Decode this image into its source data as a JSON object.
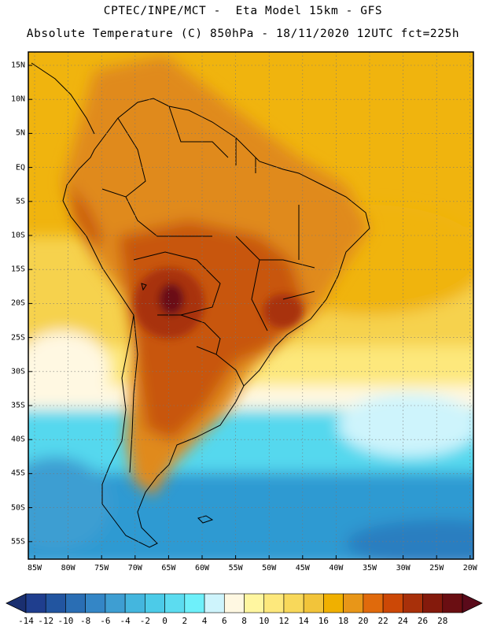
{
  "header": {
    "line1": "CPTEC/INPE/MCT -  Eta Model 15km - GFS",
    "line2": "Absolute Temperature (C) 850hPa - 18/11/2020 12UTC fct=225h"
  },
  "map": {
    "lat_labels": [
      "15N",
      "10N",
      "5N",
      "EQ",
      "5S",
      "10S",
      "15S",
      "20S",
      "25S",
      "30S",
      "35S",
      "40S",
      "45S",
      "50S",
      "55S"
    ],
    "lon_labels": [
      "85W",
      "80W",
      "75W",
      "70W",
      "65W",
      "60W",
      "55W",
      "50W",
      "45W",
      "40W",
      "35W",
      "30W",
      "25W",
      "20W"
    ],
    "field_colors": {
      "ocean_tropical": "#f0b40e",
      "land_warm": "#e08a1e",
      "hot_core": "#8a1c10",
      "subtropical": "#f6d24e",
      "cool": "#54d8ee",
      "cold": "#2e9ad2"
    }
  },
  "colorbar": {
    "labels": [
      "-14",
      "-12",
      "-10",
      "-8",
      "-6",
      "-4",
      "-2",
      "0",
      "2",
      "4",
      "6",
      "8",
      "10",
      "12",
      "14",
      "16",
      "18",
      "20",
      "22",
      "24",
      "26",
      "28"
    ],
    "colors": [
      "#1f3e8e",
      "#2255a0",
      "#2a6eb4",
      "#3486c6",
      "#3e9ed2",
      "#44b6de",
      "#4ccbe8",
      "#5cdcf0",
      "#6ef0fa",
      "#cef4fc",
      "#fff8e2",
      "#fff6a0",
      "#fde87c",
      "#f8d85a",
      "#f2c43a",
      "#f0b000",
      "#e89618",
      "#e06a0c",
      "#cc4806",
      "#a8300a",
      "#841a0c",
      "#6a0e12"
    ],
    "extend_low_color": "#1a2f70",
    "extend_high_color": "#5a0a1a"
  }
}
